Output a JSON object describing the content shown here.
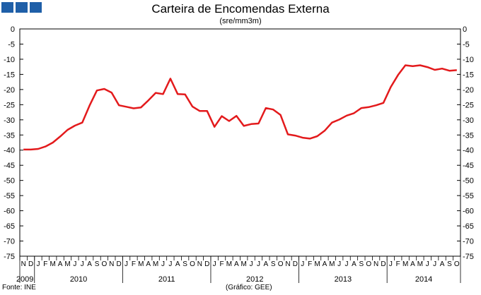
{
  "header": {
    "title": "Carteira de Encomendas Externa",
    "subtitle": "(sre/mm3m)"
  },
  "footer": {
    "source": "Fonte: INE",
    "credit": "(Gráfico: GEE)"
  },
  "colors": {
    "line": "#e31a1c",
    "logo": "#1f5fa8"
  },
  "chart_data": {
    "type": "line",
    "title": "Carteira de Encomendas Externa",
    "subtitle": "(sre/mm3m)",
    "ylim": [
      -75,
      0
    ],
    "yticks": [
      0,
      -5,
      -10,
      -15,
      -20,
      -25,
      -30,
      -35,
      -40,
      -45,
      -50,
      -55,
      -60,
      -65,
      -70,
      -75
    ],
    "grid": false,
    "x": [
      "2009-11",
      "2009-12",
      "2010-01",
      "2010-02",
      "2010-03",
      "2010-04",
      "2010-05",
      "2010-06",
      "2010-07",
      "2010-08",
      "2010-09",
      "2010-10",
      "2010-11",
      "2010-12",
      "2011-01",
      "2011-02",
      "2011-03",
      "2011-04",
      "2011-05",
      "2011-06",
      "2011-07",
      "2011-08",
      "2011-09",
      "2011-10",
      "2011-11",
      "2011-12",
      "2012-01",
      "2012-02",
      "2012-03",
      "2012-04",
      "2012-05",
      "2012-06",
      "2012-07",
      "2012-08",
      "2012-09",
      "2012-10",
      "2012-11",
      "2012-12",
      "2013-01",
      "2013-02",
      "2013-03",
      "2013-04",
      "2013-05",
      "2013-06",
      "2013-07",
      "2013-08",
      "2013-09",
      "2013-10",
      "2013-11",
      "2013-12",
      "2014-01",
      "2014-02",
      "2014-03",
      "2014-04",
      "2014-05",
      "2014-06",
      "2014-07",
      "2014-08",
      "2014-09",
      "2014-10"
    ],
    "month_labels": [
      "N",
      "D",
      "J",
      "F",
      "M",
      "A",
      "M",
      "J",
      "J",
      "A",
      "S",
      "O",
      "N",
      "D",
      "J",
      "F",
      "M",
      "A",
      "M",
      "J",
      "J",
      "A",
      "S",
      "O",
      "N",
      "D",
      "J",
      "F",
      "M",
      "A",
      "M",
      "J",
      "J",
      "A",
      "S",
      "O",
      "N",
      "D",
      "J",
      "F",
      "M",
      "A",
      "M",
      "J",
      "J",
      "A",
      "S",
      "O",
      "N",
      "D",
      "J",
      "F",
      "M",
      "A",
      "M",
      "J",
      "J",
      "A",
      "S",
      "O"
    ],
    "year_labels": [
      {
        "label": "2009",
        "start": 0,
        "end": 1
      },
      {
        "label": "2010",
        "start": 2,
        "end": 13
      },
      {
        "label": "2011",
        "start": 14,
        "end": 25
      },
      {
        "label": "2012",
        "start": 26,
        "end": 37
      },
      {
        "label": "2013",
        "start": 38,
        "end": 49
      },
      {
        "label": "2014",
        "start": 50,
        "end": 59
      }
    ],
    "series": [
      {
        "values": [
          -39.8,
          -39.8,
          -39.6,
          -38.8,
          -37.5,
          -35.5,
          -33.3,
          -31.9,
          -30.9,
          -25.3,
          -20.3,
          -19.8,
          -21.0,
          -25.2,
          -25.7,
          -26.2,
          -25.9,
          -23.6,
          -21.1,
          -21.5,
          -16.4,
          -21.5,
          -21.6,
          -25.6,
          -27.1,
          -27.1,
          -32.3,
          -28.8,
          -30.4,
          -28.7,
          -32.0,
          -31.4,
          -31.2,
          -26.1,
          -26.6,
          -28.4,
          -34.8,
          -35.2,
          -35.9,
          -36.2,
          -35.4,
          -33.6,
          -30.9,
          -29.9,
          -28.6,
          -27.8,
          -26.1,
          -25.8,
          -25.2,
          -24.4,
          -19.2,
          -15.2,
          -12.0,
          -12.3,
          -12.0,
          -12.6,
          -13.5,
          -13.1,
          -13.8,
          -13.6
        ]
      }
    ]
  }
}
